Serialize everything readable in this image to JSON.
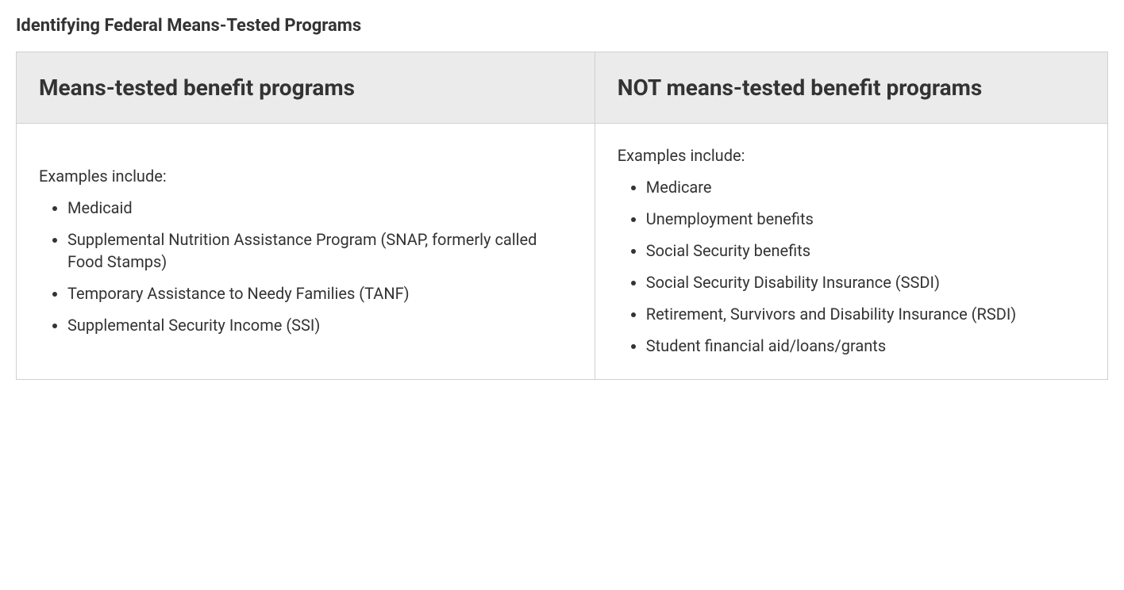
{
  "title": "Identifying Federal Means-Tested Programs",
  "table": {
    "headers": {
      "col1": "Means-tested benefit programs",
      "col2": "NOT means-tested benefit programs"
    },
    "col1": {
      "intro": "Examples include:",
      "items": [
        "Medicaid",
        "Supplemental Nutrition Assistance Program (SNAP, formerly called Food Stamps)",
        "Temporary Assistance to Needy Families (TANF)",
        "Supplemental Security Income (SSI)"
      ]
    },
    "col2": {
      "intro": "Examples include:",
      "items": [
        "Medicare",
        "Unemployment benefits",
        "Social Security benefits",
        "Social Security Disability Insurance (SSDI)",
        "Retirement, Survivors and Disability Insurance (RSDI)",
        "Student financial aid/loans/grants"
      ]
    }
  },
  "style": {
    "header_bg": "#ebebeb",
    "border_color": "#d0d0d0",
    "text_color": "#333333",
    "title_fontsize": 22,
    "header_fontsize": 28,
    "body_fontsize": 20
  }
}
